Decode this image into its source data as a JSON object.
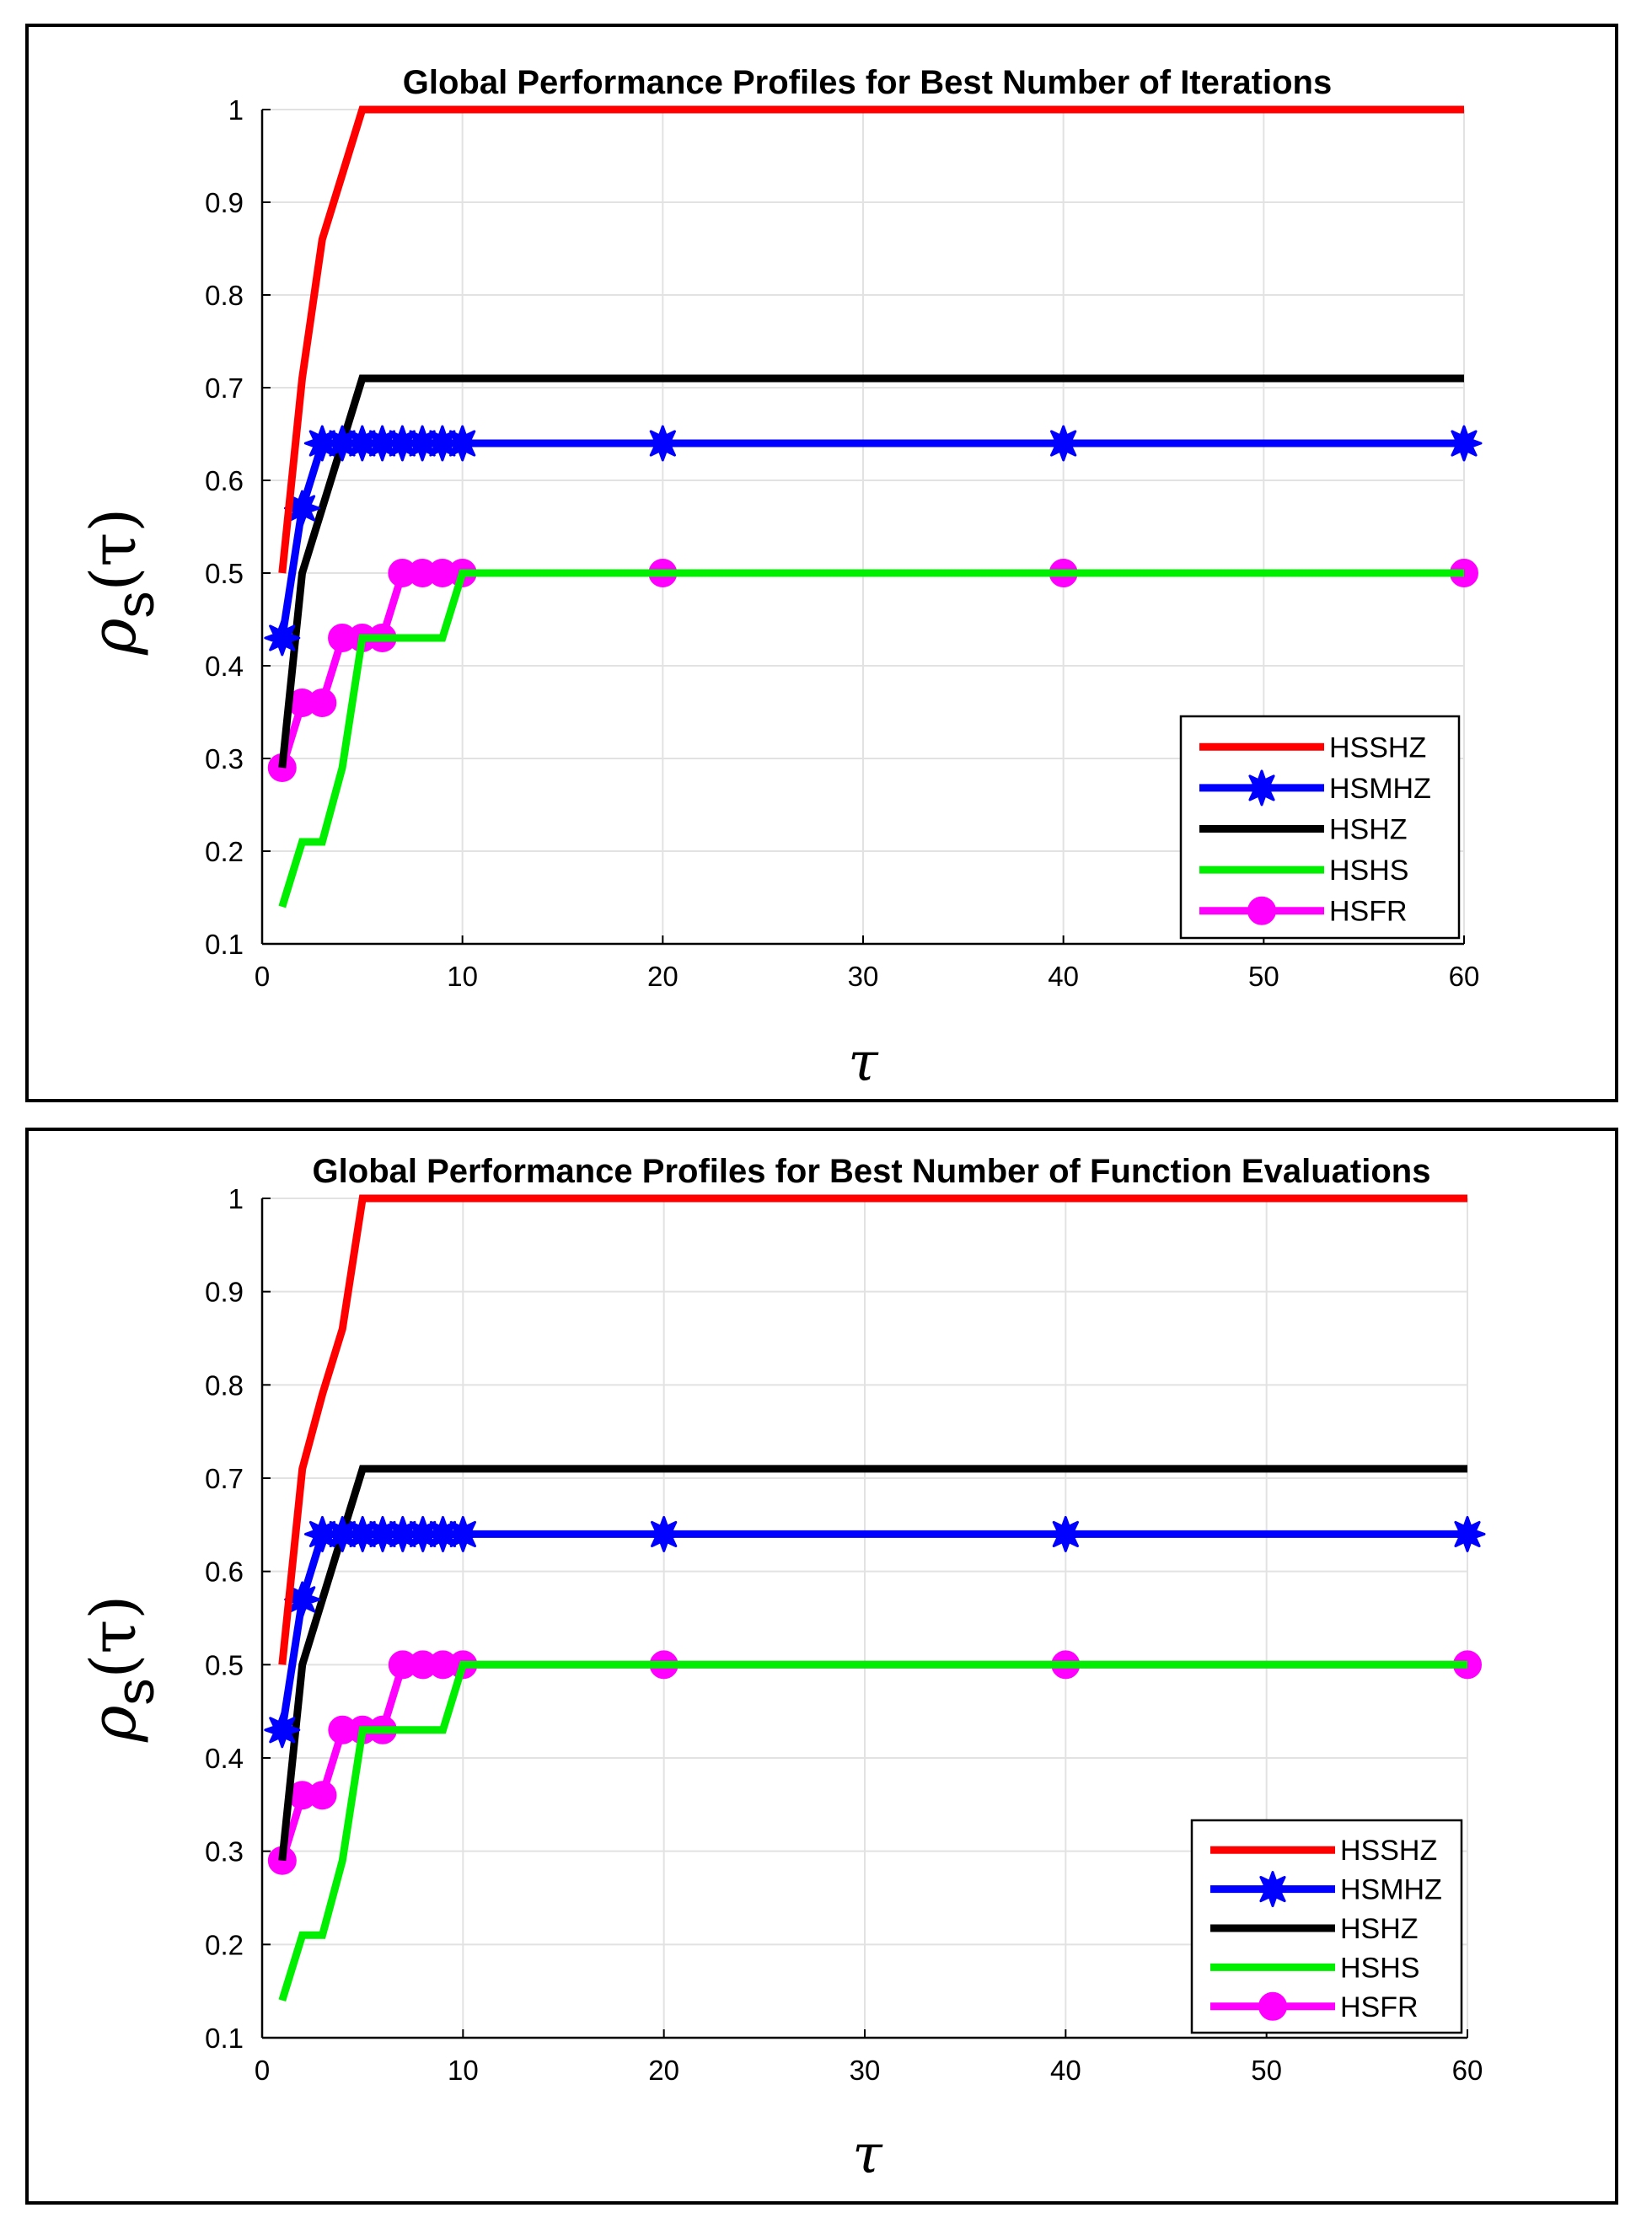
{
  "chart_data": [
    {
      "type": "line",
      "title": "Global Performance Profiles for Best Number of Iterations",
      "xlabel": "τ",
      "ylabel_symbol": "ρ",
      "ylabel_subscript": "s",
      "ylabel_arg": "(τ)",
      "xlim": [
        0,
        60
      ],
      "ylim": [
        0.1,
        1
      ],
      "xticks": [
        0,
        10,
        20,
        30,
        40,
        50,
        60
      ],
      "xtick_labels": [
        "0",
        "10",
        "20",
        "30",
        "40",
        "50",
        "60"
      ],
      "yticks": [
        0.1,
        0.2,
        0.3,
        0.4,
        0.5,
        0.6,
        0.7,
        0.8,
        0.9,
        1
      ],
      "ytick_labels": [
        "0.1",
        "0.2",
        "0.3",
        "0.4",
        "0.5",
        "0.6",
        "0.7",
        "0.8",
        "0.9",
        "1"
      ],
      "grid": true,
      "legend_position": "bottom-right",
      "series": [
        {
          "name": "HSSHZ",
          "color": "#ff0000",
          "marker": "none",
          "x": [
            1,
            2,
            3,
            4,
            5,
            60
          ],
          "y": [
            0.5,
            0.71,
            0.86,
            0.93,
            1.0,
            1.0
          ]
        },
        {
          "name": "HSMHZ",
          "color": "#0000ff",
          "marker": "star",
          "x": [
            1,
            2,
            3,
            4,
            5,
            6,
            7,
            8,
            9,
            10,
            20,
            40,
            60
          ],
          "y": [
            0.43,
            0.57,
            0.64,
            0.64,
            0.64,
            0.64,
            0.64,
            0.64,
            0.64,
            0.64,
            0.64,
            0.64,
            0.64
          ]
        },
        {
          "name": "HSHZ",
          "color": "#000000",
          "marker": "none",
          "x": [
            1,
            2,
            3,
            4,
            5,
            60
          ],
          "y": [
            0.29,
            0.5,
            0.57,
            0.64,
            0.71,
            0.71
          ]
        },
        {
          "name": "HSHS",
          "color": "#00ee00",
          "marker": "none",
          "x": [
            1,
            2,
            3,
            4,
            5,
            6,
            7,
            8,
            9,
            10,
            60
          ],
          "y": [
            0.14,
            0.21,
            0.21,
            0.29,
            0.43,
            0.43,
            0.43,
            0.43,
            0.43,
            0.5,
            0.5
          ]
        },
        {
          "name": "HSFR",
          "color": "#ff00ff",
          "marker": "circle",
          "x": [
            1,
            2,
            3,
            4,
            5,
            6,
            7,
            8,
            9,
            10,
            20,
            40,
            60
          ],
          "y": [
            0.29,
            0.36,
            0.36,
            0.43,
            0.43,
            0.43,
            0.5,
            0.5,
            0.5,
            0.5,
            0.5,
            0.5,
            0.5
          ]
        }
      ]
    },
    {
      "type": "line",
      "title": "Global Performance Profiles for Best Number of Function Evaluations",
      "xlabel": "τ",
      "ylabel_symbol": "ρ",
      "ylabel_subscript": "s",
      "ylabel_arg": "(τ)",
      "xlim": [
        0,
        60
      ],
      "ylim": [
        0.1,
        1
      ],
      "xticks": [
        0,
        10,
        20,
        30,
        40,
        50,
        60
      ],
      "xtick_labels": [
        "0",
        "10",
        "20",
        "30",
        "40",
        "50",
        "60"
      ],
      "yticks": [
        0.1,
        0.2,
        0.3,
        0.4,
        0.5,
        0.6,
        0.7,
        0.8,
        0.9,
        1
      ],
      "ytick_labels": [
        "0.1",
        "0.2",
        "0.3",
        "0.4",
        "0.5",
        "0.6",
        "0.7",
        "0.8",
        "0.9",
        "1"
      ],
      "grid": true,
      "legend_position": "bottom-right",
      "series": [
        {
          "name": "HSSHZ",
          "color": "#ff0000",
          "marker": "none",
          "x": [
            1,
            2,
            3,
            4,
            5,
            60
          ],
          "y": [
            0.5,
            0.71,
            0.79,
            0.86,
            1.0,
            1.0
          ]
        },
        {
          "name": "HSMHZ",
          "color": "#0000ff",
          "marker": "star",
          "x": [
            1,
            2,
            3,
            4,
            5,
            6,
            7,
            8,
            9,
            10,
            20,
            40,
            60
          ],
          "y": [
            0.43,
            0.57,
            0.64,
            0.64,
            0.64,
            0.64,
            0.64,
            0.64,
            0.64,
            0.64,
            0.64,
            0.64,
            0.64
          ]
        },
        {
          "name": "HSHZ",
          "color": "#000000",
          "marker": "none",
          "x": [
            1,
            2,
            3,
            4,
            5,
            60
          ],
          "y": [
            0.29,
            0.5,
            0.57,
            0.64,
            0.71,
            0.71
          ]
        },
        {
          "name": "HSHS",
          "color": "#00ee00",
          "marker": "none",
          "x": [
            1,
            2,
            3,
            4,
            5,
            6,
            7,
            8,
            9,
            10,
            60
          ],
          "y": [
            0.14,
            0.21,
            0.21,
            0.29,
            0.43,
            0.43,
            0.43,
            0.43,
            0.43,
            0.5,
            0.5
          ]
        },
        {
          "name": "HSFR",
          "color": "#ff00ff",
          "marker": "circle",
          "x": [
            1,
            2,
            3,
            4,
            5,
            6,
            7,
            8,
            9,
            10,
            20,
            40,
            60
          ],
          "y": [
            0.29,
            0.36,
            0.36,
            0.43,
            0.43,
            0.43,
            0.5,
            0.5,
            0.5,
            0.5,
            0.5,
            0.5,
            0.5
          ]
        }
      ]
    }
  ]
}
